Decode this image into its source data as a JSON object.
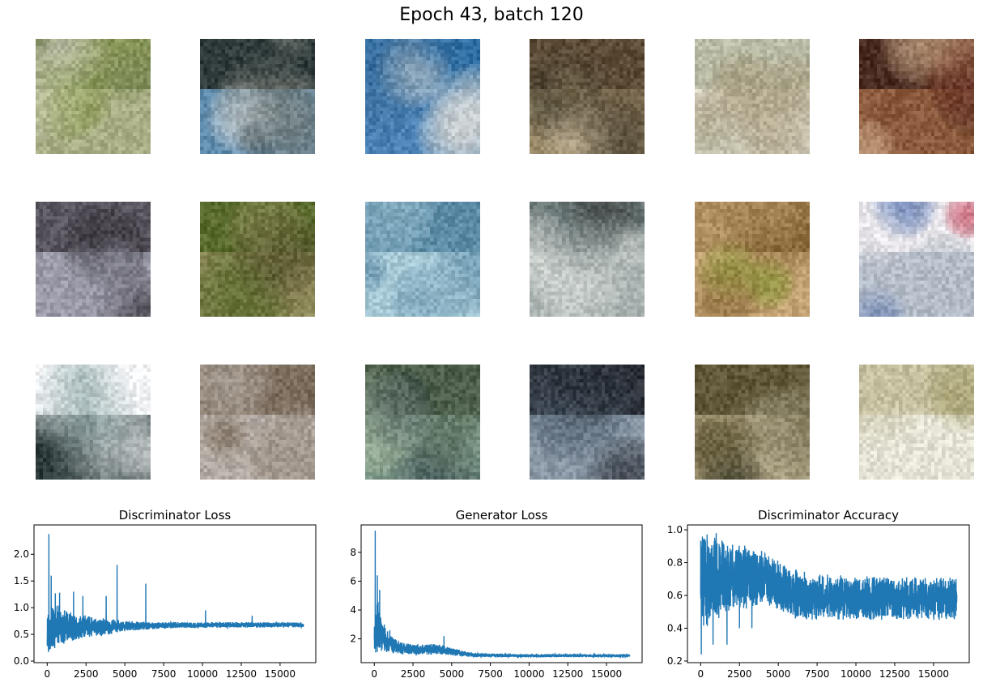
{
  "figure": {
    "suptitle": "Epoch 43, batch 120"
  },
  "samples": {
    "rows": 3,
    "cols": 6,
    "palettes": [
      [
        "#6b7a4a",
        "#a9ad86",
        "#e2ded2",
        "#7a8f3a"
      ],
      [
        "#2e3a3a",
        "#5b87a8",
        "#e6e6e4",
        "#7b7f78"
      ],
      [
        "#2f6ea3",
        "#4a82b5",
        "#f1e6d8",
        "#3b6e9c"
      ],
      [
        "#5a4a36",
        "#9a8a6a",
        "#c8b89e",
        "#3d3a2c"
      ],
      [
        "#b9bba6",
        "#d8d2c2",
        "#a79d7f",
        "#5d6e3b"
      ],
      [
        "#4a2c22",
        "#8b5a3c",
        "#cfae8e",
        "#7a2a22"
      ],
      [
        "#5a5660",
        "#9a9aa8",
        "#dcdcde",
        "#2c2a30"
      ],
      [
        "#5a6b2e",
        "#8e8a5a",
        "#c8bca0",
        "#4b3a26"
      ],
      [
        "#5d8ca6",
        "#a7c9d6",
        "#3a4a4e",
        "#dbe8ea"
      ],
      [
        "#6d7a7a",
        "#a9b2b0",
        "#d8dcd8",
        "#3e4240"
      ],
      [
        "#8a6a3a",
        "#c4a474",
        "#e0cca8",
        "#7a8a2a"
      ],
      [
        "#e8e6ea",
        "#b4bcc8",
        "#c2435a",
        "#4a6aa8"
      ],
      [
        "#f2f4f6",
        "#2c3a3a",
        "#dfe6e8",
        "#6a8a8a"
      ],
      [
        "#7a6a5a",
        "#b2aaa2",
        "#d6d4d2",
        "#4a3a30"
      ],
      [
        "#4c5e4a",
        "#7f9a8a",
        "#32454a",
        "#a4b49a"
      ],
      [
        "#2a2e36",
        "#8896a4",
        "#c6ccd2",
        "#4a5a6a"
      ],
      [
        "#5e5636",
        "#938866",
        "#c4bca4",
        "#3a3a2a"
      ],
      [
        "#c6c0a0",
        "#e4e2d4",
        "#8a7a58",
        "#a6a070"
      ]
    ]
  },
  "chart_data": [
    {
      "type": "line",
      "title": "Discriminator Loss",
      "xlabel": "",
      "ylabel": "",
      "xlim": [
        -850,
        17300
      ],
      "ylim": [
        -0.03,
        2.55
      ],
      "xticks": [
        0,
        2500,
        5000,
        7500,
        10000,
        12500,
        15000
      ],
      "yticks": [
        0.0,
        0.5,
        1.0,
        1.5,
        2.0
      ],
      "ytick_labels": [
        "0.0",
        "0.5",
        "1.0",
        "1.5",
        "2.0"
      ],
      "color": "#1f77b4",
      "n_points": 16500,
      "envelope_x": [
        0,
        500,
        1000,
        2000,
        3000,
        4000,
        5000,
        6000,
        7000,
        10000,
        16500
      ],
      "envelope_low": [
        0.08,
        0.2,
        0.3,
        0.4,
        0.45,
        0.48,
        0.55,
        0.58,
        0.6,
        0.62,
        0.63
      ],
      "envelope_high": [
        0.9,
        1.1,
        1.0,
        0.9,
        0.82,
        0.8,
        0.76,
        0.74,
        0.73,
        0.73,
        0.73
      ],
      "spikes": [
        {
          "x": 110,
          "y": 2.38
        },
        {
          "x": 260,
          "y": 1.6
        },
        {
          "x": 520,
          "y": 1.27
        },
        {
          "x": 800,
          "y": 1.28
        },
        {
          "x": 1700,
          "y": 1.3
        },
        {
          "x": 2300,
          "y": 1.22
        },
        {
          "x": 3800,
          "y": 1.22
        },
        {
          "x": 4500,
          "y": 1.8
        },
        {
          "x": 6350,
          "y": 1.45
        },
        {
          "x": 10200,
          "y": 0.95
        },
        {
          "x": 13200,
          "y": 0.85
        }
      ]
    },
    {
      "type": "line",
      "title": "Generator Loss",
      "xlabel": "",
      "ylabel": "",
      "xlim": [
        -850,
        17300
      ],
      "ylim": [
        0.35,
        9.9
      ],
      "xticks": [
        0,
        2500,
        5000,
        7500,
        10000,
        12500,
        15000
      ],
      "yticks": [
        2,
        4,
        6,
        8
      ],
      "ytick_labels": [
        "2",
        "4",
        "6",
        "8"
      ],
      "color": "#1f77b4",
      "n_points": 16500,
      "envelope_x": [
        0,
        200,
        500,
        1000,
        2000,
        3000,
        4000,
        5000,
        6000,
        7000,
        10000,
        16500
      ],
      "envelope_low": [
        0.7,
        1.0,
        1.1,
        1.0,
        0.9,
        0.9,
        0.9,
        0.85,
        0.75,
        0.72,
        0.72,
        0.72
      ],
      "envelope_high": [
        4.0,
        5.0,
        3.2,
        2.3,
        1.7,
        1.6,
        1.7,
        1.4,
        1.1,
        1.0,
        0.95,
        0.95
      ],
      "spikes": [
        {
          "x": 60,
          "y": 9.5
        },
        {
          "x": 200,
          "y": 6.4
        },
        {
          "x": 350,
          "y": 5.4
        },
        {
          "x": 650,
          "y": 3.0
        },
        {
          "x": 1000,
          "y": 2.6
        },
        {
          "x": 4500,
          "y": 2.2
        }
      ]
    },
    {
      "type": "line",
      "title": "Discriminator Accuracy",
      "xlabel": "",
      "ylabel": "",
      "xlim": [
        -850,
        17300
      ],
      "ylim": [
        0.19,
        1.03
      ],
      "xticks": [
        0,
        2500,
        5000,
        7500,
        10000,
        12500,
        15000
      ],
      "yticks": [
        0.2,
        0.4,
        0.6,
        0.8,
        1.0
      ],
      "ytick_labels": [
        "0.2",
        "0.4",
        "0.6",
        "0.8",
        "1.0"
      ],
      "color": "#1f77b4",
      "n_points": 16500,
      "envelope_x": [
        0,
        1000,
        2500,
        4000,
        5000,
        6000,
        8000,
        10000,
        16500
      ],
      "envelope_low": [
        0.35,
        0.45,
        0.5,
        0.55,
        0.5,
        0.45,
        0.45,
        0.45,
        0.45
      ],
      "envelope_high": [
        1.0,
        0.96,
        0.92,
        0.88,
        0.82,
        0.76,
        0.73,
        0.72,
        0.71
      ],
      "spikes": [
        {
          "x": 40,
          "y": 0.24
        },
        {
          "x": 800,
          "y": 0.3
        },
        {
          "x": 1700,
          "y": 0.3
        },
        {
          "x": 2500,
          "y": 0.4
        },
        {
          "x": 3300,
          "y": 0.4
        },
        {
          "x": 1000,
          "y": 0.98
        }
      ]
    }
  ]
}
